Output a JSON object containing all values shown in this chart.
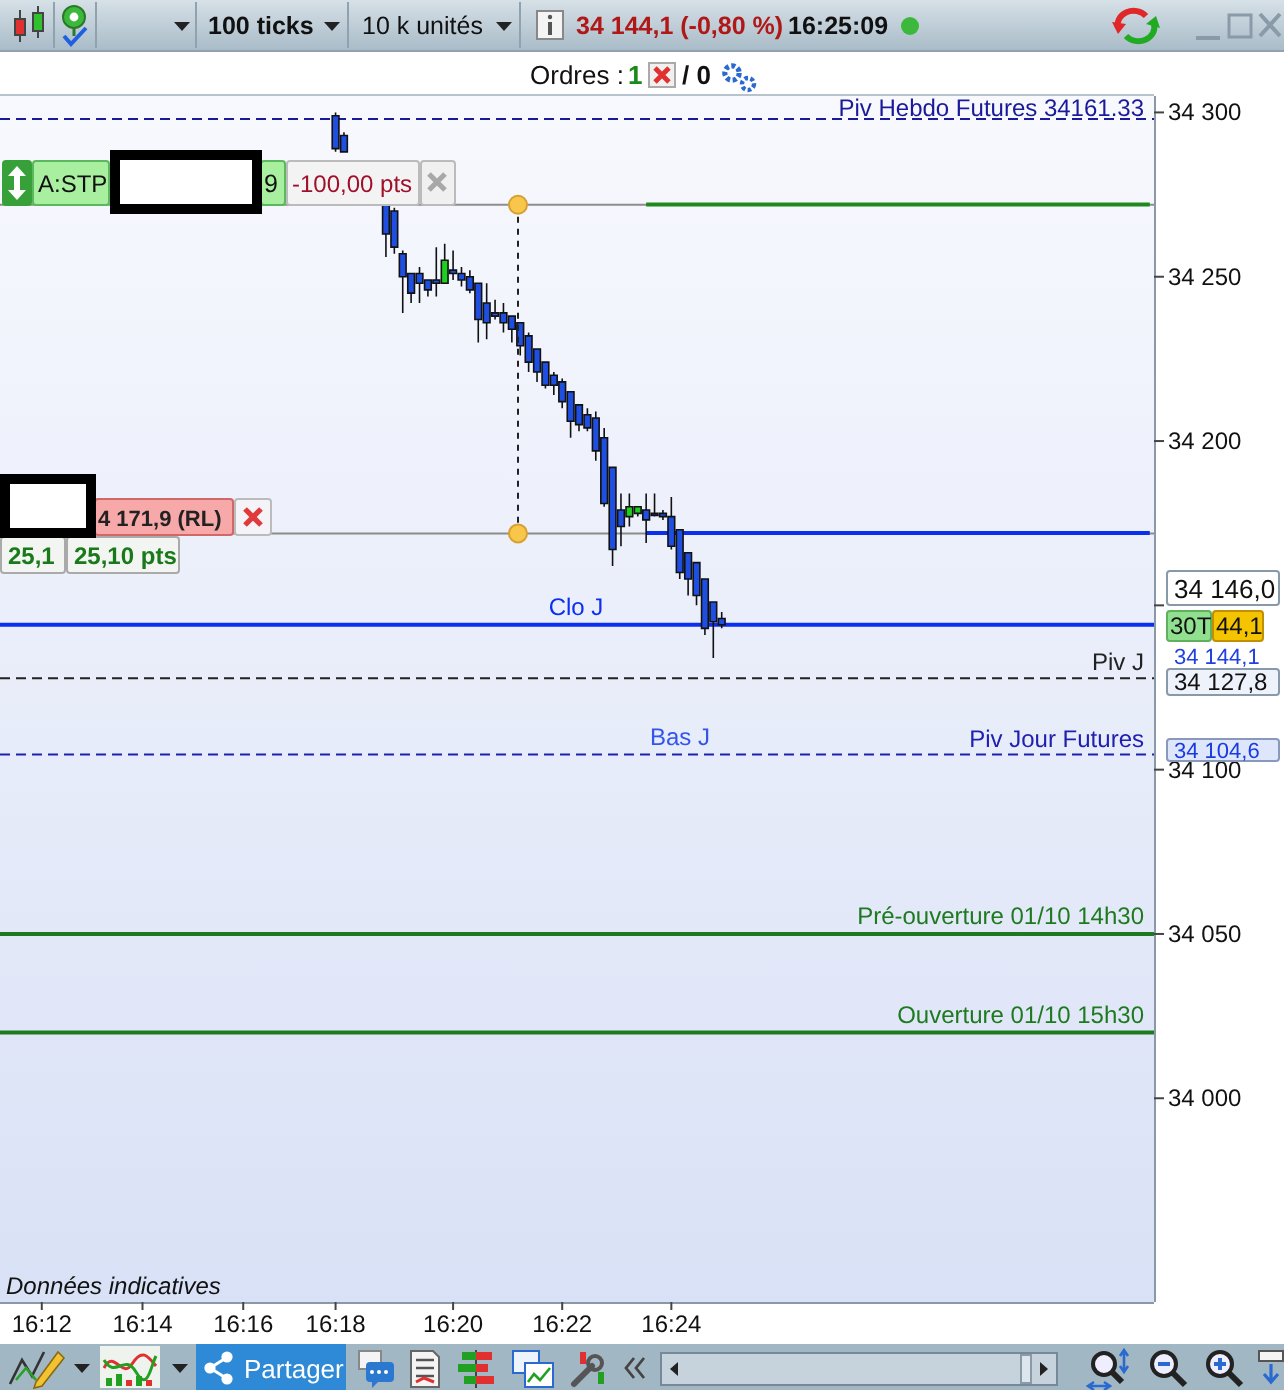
{
  "chart_data": {
    "type": "candlestick",
    "categories": [
      null,
      null,
      null,
      null,
      "16:12",
      null,
      null,
      null,
      null,
      null,
      null,
      null,
      null,
      null,
      null,
      null,
      "16:14",
      null,
      null,
      null,
      null,
      null,
      null,
      null,
      null,
      null,
      null,
      null,
      "16:16",
      null,
      null,
      null,
      null,
      null,
      null,
      null,
      null,
      null,
      null,
      "16:18",
      null,
      null,
      null,
      null,
      null,
      null,
      null,
      null,
      null,
      null,
      null,
      null,
      null,
      "16:20",
      null,
      null,
      null,
      null,
      null,
      null,
      null,
      null,
      null,
      null,
      null,
      null,
      "16:22",
      null,
      null,
      null,
      null,
      null,
      null,
      null,
      null,
      null,
      null,
      null,
      null,
      "16:24",
      null,
      null,
      null,
      null,
      null,
      null,
      null,
      null,
      null,
      null,
      null,
      null,
      null,
      null,
      null,
      null,
      null,
      null,
      null,
      null,
      null,
      null,
      null,
      null,
      null,
      null,
      null,
      null,
      null,
      null,
      null,
      null,
      null,
      null,
      null,
      null,
      null,
      null,
      null,
      null,
      null,
      null,
      null,
      null,
      null,
      null,
      null,
      null,
      null,
      null,
      null,
      null,
      null,
      null,
      null,
      null,
      null
    ],
    "ohlc": [
      null,
      null,
      null,
      null,
      null,
      null,
      null,
      null,
      null,
      null,
      null,
      null,
      null,
      null,
      null,
      null,
      null,
      null,
      null,
      null,
      null,
      null,
      null,
      null,
      null,
      null,
      null,
      null,
      null,
      null,
      null,
      null,
      null,
      null,
      null,
      null,
      null,
      null,
      null,
      [
        34299,
        34300,
        34288,
        34289
      ],
      [
        34293,
        34294,
        34288,
        34288
      ],
      null,
      null,
      null,
      null,
      [
        34272,
        34273,
        34256,
        34263
      ],
      [
        34270,
        34271,
        34257,
        34259
      ],
      [
        34257,
        34258,
        34239,
        34250
      ],
      [
        34251,
        34251,
        34242,
        34245
      ],
      [
        34251,
        34253,
        34242,
        34248
      ],
      [
        34249,
        34249,
        34244,
        34246
      ],
      [
        34249,
        34259,
        34244,
        34248
      ],
      [
        34248,
        34260,
        34248,
        34255
      ],
      [
        34252,
        34258,
        34249,
        34251
      ],
      [
        34251,
        34253,
        34247,
        34249
      ],
      [
        34250,
        34252,
        34245,
        34246
      ],
      [
        34248,
        34248,
        34230,
        34237
      ],
      [
        34242,
        34248,
        34231,
        34236
      ],
      [
        34239,
        34243,
        34237,
        34238
      ],
      [
        34239,
        34242,
        34233,
        34236
      ],
      [
        34238,
        34238,
        34230,
        34234
      ],
      [
        34236,
        34236,
        34226,
        34229
      ],
      [
        34232,
        34233,
        34221,
        34224
      ],
      [
        34228,
        34228,
        34218,
        34221
      ],
      [
        34224,
        34224,
        34216,
        34217
      ],
      [
        34220,
        34221,
        34214,
        34217
      ],
      [
        34218,
        34219,
        34210,
        34212
      ],
      [
        34215,
        34215,
        34201,
        34206
      ],
      [
        34211,
        34211,
        34203,
        34205
      ],
      [
        34208,
        34210,
        34203,
        34204
      ],
      [
        34207,
        34209,
        34194,
        34197
      ],
      [
        34201,
        34204,
        34180,
        34181
      ],
      [
        34192,
        34192,
        34162,
        34167
      ],
      [
        34179,
        34184,
        34168,
        34174
      ],
      [
        34177,
        34184,
        34174,
        34180
      ],
      [
        34178,
        34180,
        34177,
        34180
      ],
      [
        34179,
        34184,
        34169,
        34176
      ],
      [
        34178,
        34184,
        34177,
        34177.5
      ],
      [
        34178,
        34179,
        34176,
        34177
      ],
      [
        34177,
        34183,
        34167,
        34168
      ],
      [
        34173,
        34173,
        34158,
        34160
      ],
      [
        34166,
        34166,
        34153,
        34158
      ],
      [
        34163,
        34163,
        34150,
        34153
      ],
      [
        34158,
        34158,
        34141,
        34143
      ],
      [
        34151,
        34151,
        34134,
        34145
      ],
      [
        34146,
        34148,
        34143,
        34144.1
      ],
      null,
      null,
      null,
      null,
      null,
      null,
      null,
      null,
      null,
      null,
      null,
      null,
      null,
      null,
      null,
      null,
      null,
      null,
      null,
      null,
      null,
      null,
      null,
      null,
      null,
      null,
      null,
      null,
      null,
      null,
      null,
      null,
      null,
      null,
      null,
      null,
      null,
      null,
      null,
      null,
      null,
      null,
      null,
      null,
      null,
      null,
      null,
      null,
      null,
      null,
      null
    ],
    "colors": [
      null,
      null,
      null,
      null,
      null,
      null,
      null,
      null,
      null,
      null,
      null,
      null,
      null,
      null,
      null,
      null,
      null,
      null,
      null,
      null,
      null,
      null,
      null,
      null,
      null,
      null,
      null,
      null,
      null,
      null,
      null,
      null,
      null,
      null,
      null,
      null,
      null,
      null,
      null,
      "#1f4fe0",
      "#1f4fe0",
      null,
      null,
      null,
      null,
      "#1f4fe0",
      "#1f4fe0",
      "#1f4fe0",
      "#1f4fe0",
      "#1f4fe0",
      "#1f4fe0",
      "#1f4fe0",
      "#1fcf1f",
      "#1f4fe0",
      "#1f4fe0",
      "#1f4fe0",
      "#1f4fe0",
      "#1f4fe0",
      "#1f4fe0",
      "#1f4fe0",
      "#1f4fe0",
      "#1f4fe0",
      "#1f4fe0",
      "#1f4fe0",
      "#1f4fe0",
      "#1f4fe0",
      "#1f4fe0",
      "#1f4fe0",
      "#1f4fe0",
      "#1f4fe0",
      "#1f4fe0",
      "#1f4fe0",
      "#1f4fe0",
      "#1f4fe0",
      "#1fcf1f",
      "#1fcf1f",
      "#1f4fe0",
      "#1f4fe0",
      "#1f4fe0",
      "#1f4fe0",
      "#1f4fe0",
      "#1f4fe0",
      "#1f4fe0",
      "#1f4fe0",
      "#1f4fe0",
      "#1f4fe0",
      null,
      null,
      null,
      null,
      null,
      null,
      null,
      null,
      null,
      null,
      null,
      null,
      null,
      null,
      null,
      null,
      null,
      null,
      null,
      null,
      null,
      null,
      null,
      null,
      null,
      null,
      null,
      null,
      null,
      null,
      null,
      null,
      null,
      null,
      null,
      null,
      null,
      null,
      null,
      null,
      null,
      null,
      null,
      null,
      null,
      null,
      null,
      null,
      null,
      null,
      null
    ],
    "series": [
      {
        "type": "line",
        "color": "#1e8a1e",
        "values": [
          null,
          null,
          null,
          null,
          null,
          null,
          null,
          null,
          null,
          null,
          null,
          null,
          null,
          null,
          null,
          null,
          null,
          null,
          null,
          null,
          null,
          null,
          null,
          null,
          null,
          null,
          null,
          null,
          null,
          null,
          null,
          null,
          null,
          null,
          null,
          null,
          null,
          null,
          null,
          null,
          null,
          null,
          null,
          null,
          null,
          null,
          null,
          null,
          null,
          null,
          null,
          null,
          null,
          null,
          null,
          null,
          null,
          null,
          null,
          null,
          null,
          null,
          null,
          null,
          null,
          null,
          null,
          null,
          null,
          null,
          null,
          null,
          null,
          null,
          null,
          null,
          34272,
          34272,
          34272,
          34272,
          34272,
          34272,
          34272,
          34272,
          34272,
          34272,
          34272,
          34272,
          34272,
          34272,
          34272,
          34272,
          34272,
          34272,
          34272,
          34272,
          34272,
          34272,
          34272,
          34272,
          34272,
          34272,
          34272,
          34272,
          34272,
          34272,
          34272,
          34272,
          34272,
          34272,
          34272,
          34272,
          34272,
          34272,
          34272,
          34272,
          34272,
          34272,
          34272,
          34272,
          34272,
          34272,
          34272,
          34272,
          34272,
          34272,
          34272,
          34272,
          34272,
          34272,
          34272,
          34272,
          34272,
          34272,
          34272,
          34272,
          34272
        ]
      },
      {
        "type": "line",
        "color": "#0b2ff0",
        "values": [
          null,
          null,
          null,
          null,
          null,
          null,
          null,
          null,
          null,
          null,
          null,
          null,
          null,
          null,
          null,
          null,
          null,
          null,
          null,
          null,
          null,
          null,
          null,
          null,
          null,
          null,
          null,
          null,
          null,
          null,
          null,
          null,
          null,
          null,
          null,
          null,
          null,
          null,
          null,
          null,
          null,
          null,
          null,
          null,
          null,
          null,
          null,
          null,
          null,
          null,
          null,
          null,
          null,
          null,
          null,
          null,
          null,
          null,
          null,
          null,
          null,
          null,
          null,
          null,
          null,
          null,
          null,
          null,
          null,
          null,
          null,
          null,
          null,
          null,
          null,
          null,
          34172,
          34172,
          34172,
          34172,
          34172,
          34172,
          34172,
          34172,
          34172,
          34172,
          34172,
          34172,
          34172,
          34172,
          34172,
          34172,
          34172,
          34172,
          34172,
          34172,
          34172,
          34172,
          34172,
          34172,
          34172,
          34172,
          34172,
          34172,
          34172,
          34172,
          34172,
          34172,
          34172,
          34172,
          34172,
          34172,
          34172,
          34172,
          34172,
          34172,
          34172,
          34172,
          34172,
          34172,
          34172,
          34172,
          34172,
          34172,
          34172,
          34172,
          34172,
          34172,
          34172,
          34172,
          34172,
          34172,
          34172,
          34172,
          34172,
          34172,
          34172
        ]
      }
    ],
    "ylim": [
      33938,
      34305
    ],
    "yticks": [
      {
        "value": 34000,
        "label": "34 000"
      },
      {
        "value": 34050,
        "label": "34 050"
      },
      {
        "value": 34100,
        "label": "34 100"
      },
      {
        "value": 34150,
        "label": null
      },
      {
        "value": 34200,
        "label": "34 200"
      },
      {
        "value": 34250,
        "label": "34 250"
      },
      {
        "value": 34300,
        "label": "34 300"
      }
    ],
    "ref_lines": [
      {
        "axis": "y",
        "value": 34298,
        "label": "Piv Hebdo Futures 34161.33",
        "color": "#1a1a9a",
        "line_style": "dashed"
      },
      {
        "axis": "y",
        "value": 34271.9,
        "color": "#8c8c8c"
      },
      {
        "axis": "y",
        "value": 34171.9,
        "color": "#8c8c8c"
      },
      {
        "axis": "y",
        "value": 34144.1,
        "label": "Clo J",
        "color": "#0b2ff0"
      },
      {
        "axis": "y",
        "value": 34127.8,
        "label": "Piv J",
        "color": "#222222",
        "line_style": "dashed"
      },
      {
        "axis": "y",
        "value": 34104.6,
        "label": "Piv Jour Futures",
        "color": "#2020b0",
        "line_style": "dashed"
      },
      {
        "axis": "y",
        "value": 34050,
        "label": "Pré-ouverture 01/10 14h30",
        "color": "#1e7a1e"
      },
      {
        "axis": "y",
        "value": 34020,
        "label": "Ouverture 01/10 15h30",
        "color": "#1e7a1e"
      }
    ],
    "annotations": [
      "100 ticks",
      "10 k unités",
      "34 144,1 (-0,80 %)",
      "16:25:09",
      "Ordres :",
      "1",
      "/ 0",
      "A:STP",
      "9",
      "-100,00 pts",
      "4 171,9 (RL)",
      "25,1",
      "25,10 pts",
      "34 146,0",
      "30T",
      "44,1",
      "34 144,1",
      "34 127,8",
      "34 104,6",
      {
        "text": "Bas J",
        "y": 34104.6
      },
      "Données indicatives",
      "Partager"
    ]
  }
}
